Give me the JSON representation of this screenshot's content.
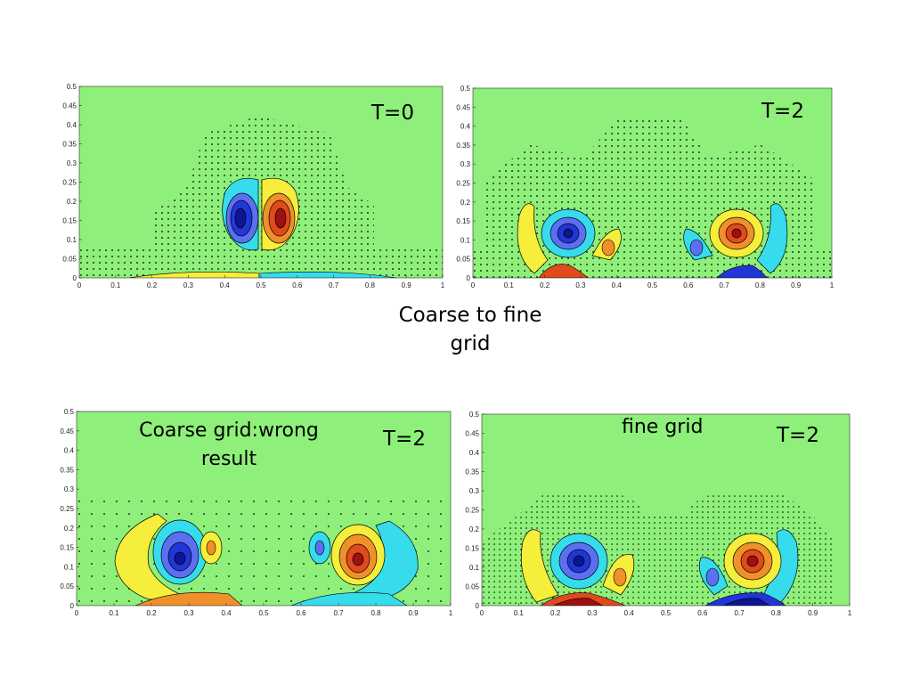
{
  "colors": {
    "background": "#8ef07a",
    "blue": "#1a2fd0",
    "cyan": "#36dcec",
    "yellow": "#f5ee3a",
    "orange": "#f0902a",
    "red": "#d21818",
    "contour": "#000000"
  },
  "x_ticks": [
    "0",
    "0.1",
    "0.2",
    "0.3",
    "0.4",
    "0.5",
    "0.6",
    "0.7",
    "0.8",
    "0.9",
    "1"
  ],
  "y_ticks": [
    "0",
    "0.05",
    "0.1",
    "0.15",
    "0.2",
    "0.25",
    "0.3",
    "0.35",
    "0.4",
    "0.45",
    "0.5"
  ],
  "caption": {
    "line1": "Coarse to fine",
    "line2": "grid"
  },
  "panels": [
    {
      "id": "t0",
      "time_label": "T=0",
      "title": ""
    },
    {
      "id": "t2-coarse-to-fine",
      "time_label": "T=2",
      "title": ""
    },
    {
      "id": "t2-coarse",
      "time_label": "T=2",
      "title_line1": "Coarse grid:wrong",
      "title_line2": "result"
    },
    {
      "id": "t2-fine",
      "time_label": "T=2",
      "title": "fine grid"
    }
  ],
  "chart_data": [
    {
      "type": "heatmap",
      "title": "T=0",
      "xlim": [
        0,
        1
      ],
      "ylim": [
        0,
        0.5
      ],
      "features": [
        {
          "kind": "vortex",
          "sign": "negative",
          "x": 0.45,
          "y": 0.15
        },
        {
          "kind": "vortex",
          "sign": "positive",
          "x": 0.55,
          "y": 0.15
        },
        {
          "kind": "boundary-layer",
          "sign": "positive",
          "x": [
            0.15,
            0.5
          ],
          "y": 0.005
        },
        {
          "kind": "boundary-layer",
          "sign": "negative",
          "x": [
            0.5,
            0.88
          ],
          "y": 0.005
        }
      ]
    },
    {
      "type": "heatmap",
      "title": "T=2",
      "xlim": [
        0,
        1
      ],
      "ylim": [
        0,
        0.5
      ],
      "features": [
        {
          "kind": "vortex",
          "sign": "negative",
          "x": 0.26,
          "y": 0.11
        },
        {
          "kind": "vortex",
          "sign": "positive",
          "x": 0.74,
          "y": 0.11
        },
        {
          "kind": "secondary",
          "sign": "positive",
          "x": 0.37,
          "y": 0.08
        },
        {
          "kind": "secondary",
          "sign": "negative",
          "x": 0.63,
          "y": 0.08
        }
      ]
    },
    {
      "type": "heatmap",
      "title": "T=2",
      "xlim": [
        0,
        1
      ],
      "ylim": [
        0,
        0.5
      ],
      "features": [
        {
          "kind": "vortex",
          "sign": "negative",
          "x": 0.27,
          "y": 0.14
        },
        {
          "kind": "vortex",
          "sign": "positive",
          "x": 0.75,
          "y": 0.13
        },
        {
          "kind": "secondary",
          "sign": "positive",
          "x": 0.36,
          "y": 0.15
        },
        {
          "kind": "secondary",
          "sign": "negative",
          "x": 0.65,
          "y": 0.15
        }
      ]
    },
    {
      "type": "heatmap",
      "title": "T=2",
      "xlim": [
        0,
        1
      ],
      "ylim": [
        0,
        0.5
      ],
      "features": [
        {
          "kind": "vortex",
          "sign": "negative",
          "x": 0.26,
          "y": 0.12
        },
        {
          "kind": "vortex",
          "sign": "positive",
          "x": 0.74,
          "y": 0.12
        },
        {
          "kind": "secondary",
          "sign": "positive",
          "x": 0.38,
          "y": 0.08
        },
        {
          "kind": "secondary",
          "sign": "negative",
          "x": 0.63,
          "y": 0.08
        }
      ]
    }
  ]
}
